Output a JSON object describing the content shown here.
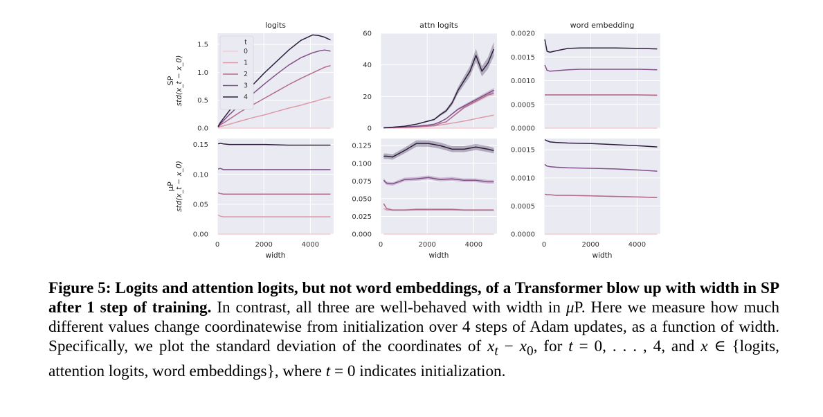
{
  "caption": {
    "label": "Figure 5:",
    "bold_text": "Logits and attention logits, but not word embeddings, of a Transformer blow up with width in SP after 1 step of training.",
    "part1": "In contrast, all three are well-behaved with width in ",
    "mu": "μ",
    "part2": "P. Here we measure how much different values change coordinatewise from initialization over 4 steps of Adam updates, as a function of width. Specifically, we plot the standard deviation of the coordinates of ",
    "math1": "x",
    "sub_t": "t",
    "minus": " − ",
    "sub_0": "0",
    "part3": ", for ",
    "t_var": "t",
    "range_text": " = 0, . . . , 4, and ",
    "x_var": "x",
    "set_text": " ∈ {logits, attention logits, word embeddings}, where ",
    "t_var2": "t",
    "part4": " = 0 indicates initialization."
  },
  "colors": {
    "background": "#eaeaf2",
    "grid": "#ffffff",
    "series": [
      "#f2cbcf",
      "#dc9aa8",
      "#b46a8f",
      "#804f88",
      "#2d1e3e"
    ]
  },
  "chart_data": [
    {
      "type": "line",
      "row": "SP",
      "title": "logits",
      "ylabel": "std(x_t − x_0)",
      "ylabel_row": "SP",
      "xlim": [
        0,
        5000
      ],
      "ylim": [
        0,
        1.7
      ],
      "xticks": [
        0,
        2000,
        4000
      ],
      "xticklabels": [],
      "yticks": [
        0,
        0.5,
        1.0,
        1.5
      ],
      "yticklabels": [
        "0.0",
        "0.5",
        "1.0",
        "1.5"
      ],
      "legend": {
        "title": "t",
        "entries": [
          "0",
          "1",
          "2",
          "3",
          "4"
        ],
        "position": "upper-left"
      },
      "x": [
        32,
        128,
        256,
        512,
        768,
        1024,
        1536,
        2048,
        2560,
        3072,
        3584,
        4096,
        4352,
        4608,
        4864
      ],
      "series": [
        {
          "name": "0",
          "values": [
            0,
            0,
            0,
            0,
            0,
            0,
            0,
            0,
            0,
            0,
            0,
            0,
            0,
            0,
            0
          ]
        },
        {
          "name": "1",
          "values": [
            0.01,
            0.03,
            0.04,
            0.07,
            0.1,
            0.13,
            0.19,
            0.24,
            0.3,
            0.36,
            0.41,
            0.47,
            0.5,
            0.53,
            0.56
          ]
        },
        {
          "name": "2",
          "values": [
            0.02,
            0.06,
            0.09,
            0.16,
            0.23,
            0.3,
            0.42,
            0.54,
            0.66,
            0.78,
            0.89,
            0.99,
            1.04,
            1.09,
            1.12
          ]
        },
        {
          "name": "3",
          "values": [
            0.02,
            0.08,
            0.13,
            0.24,
            0.34,
            0.44,
            0.62,
            0.8,
            0.97,
            1.13,
            1.26,
            1.35,
            1.38,
            1.4,
            1.38
          ]
        },
        {
          "name": "4",
          "values": [
            0.03,
            0.1,
            0.17,
            0.31,
            0.44,
            0.56,
            0.78,
            1.0,
            1.2,
            1.4,
            1.57,
            1.67,
            1.66,
            1.63,
            1.58
          ]
        }
      ]
    },
    {
      "type": "line",
      "row": "SP",
      "title": "attn logits",
      "xlim": [
        0,
        5000
      ],
      "ylim": [
        0,
        60
      ],
      "xticks": [
        0,
        2000,
        4000
      ],
      "xticklabels": [],
      "yticks": [
        0,
        20,
        40,
        60
      ],
      "yticklabels": [
        "0",
        "20",
        "40",
        "60"
      ],
      "x": [
        128,
        512,
        1024,
        1536,
        2048,
        2304,
        2560,
        2816,
        3072,
        3328,
        3584,
        3840,
        4096,
        4352,
        4608,
        4864
      ],
      "series": [
        {
          "name": "0",
          "values": [
            0,
            0,
            0,
            0,
            0,
            0,
            0,
            0,
            0,
            0,
            0,
            0,
            0,
            0,
            0,
            0
          ]
        },
        {
          "name": "1",
          "values": [
            0.1,
            0.2,
            0.4,
            0.7,
            1.2,
            1.5,
            2.0,
            2.5,
            3.2,
            3.8,
            4.5,
            5.2,
            6.0,
            6.8,
            7.5,
            8.2
          ]
        },
        {
          "name": "2",
          "values": [
            0.2,
            0.4,
            0.6,
            0.9,
            1.4,
            1.6,
            3.0,
            4.0,
            7.0,
            10.0,
            13.0,
            15.0,
            17.0,
            19.0,
            21.0,
            22.0
          ]
        },
        {
          "name": "3",
          "values": [
            0.2,
            0.5,
            0.8,
            1.2,
            2.0,
            2.5,
            4.0,
            6.0,
            9.0,
            12.0,
            14.0,
            16.0,
            18.0,
            20.0,
            22.0,
            24.0
          ]
        },
        {
          "name": "4",
          "values": [
            0.3,
            0.6,
            1.2,
            2.5,
            4.5,
            5.5,
            8.5,
            11.0,
            16.0,
            24.0,
            30.0,
            36.0,
            46.0,
            36.0,
            41.0,
            50.0
          ]
        }
      ]
    },
    {
      "type": "line",
      "row": "SP",
      "title": "word embedding",
      "xlim": [
        0,
        5000
      ],
      "ylim": [
        0,
        0.002
      ],
      "xticks": [
        0,
        2000,
        4000
      ],
      "xticklabels": [],
      "yticks": [
        0,
        0.0005,
        0.001,
        0.0015,
        0.002
      ],
      "yticklabels": [
        "0.0000",
        "0.0005",
        "0.0010",
        "0.0015",
        "0.0020"
      ],
      "x": [
        32,
        128,
        256,
        512,
        1024,
        1536,
        2048,
        3072,
        4096,
        4864
      ],
      "series": [
        {
          "name": "0",
          "values": [
            0,
            0,
            0,
            0,
            0,
            0,
            0,
            0,
            0,
            0
          ]
        },
        {
          "name": "1",
          "values": [
            0.0007,
            0.0007,
            0.0007,
            0.0007,
            0.0007,
            0.0007,
            0.0007,
            0.0007,
            0.0007,
            0.0007
          ]
        },
        {
          "name": "2",
          "values": [
            0.0007,
            0.0007,
            0.0007,
            0.0007,
            0.0007,
            0.0007,
            0.0007,
            0.0007,
            0.0007,
            0.00069
          ]
        },
        {
          "name": "3",
          "values": [
            0.00133,
            0.00122,
            0.0012,
            0.00121,
            0.00123,
            0.00124,
            0.00124,
            0.00124,
            0.00124,
            0.00123
          ]
        },
        {
          "name": "4",
          "values": [
            0.00187,
            0.00162,
            0.0016,
            0.00163,
            0.00168,
            0.00169,
            0.00169,
            0.00169,
            0.00168,
            0.00167
          ]
        }
      ]
    },
    {
      "type": "line",
      "row": "μP",
      "title": "",
      "ylabel": "std(x_t − x_0)",
      "ylabel_row": "μP",
      "xlabel": "width",
      "xlim": [
        0,
        5000
      ],
      "ylim": [
        0,
        0.16
      ],
      "xticks": [
        0,
        2000,
        4000
      ],
      "xticklabels": [
        "0",
        "2000",
        "4000"
      ],
      "yticks": [
        0,
        0.05,
        0.1,
        0.15
      ],
      "yticklabels": [
        "0.00",
        "0.05",
        "0.10",
        "0.15"
      ],
      "x": [
        32,
        128,
        256,
        512,
        1024,
        2048,
        3072,
        4096,
        4864
      ],
      "series": [
        {
          "name": "0",
          "values": [
            0,
            0,
            0,
            0,
            0,
            0,
            0,
            0,
            0
          ]
        },
        {
          "name": "1",
          "values": [
            0.032,
            0.03,
            0.029,
            0.029,
            0.029,
            0.029,
            0.029,
            0.029,
            0.029
          ]
        },
        {
          "name": "2",
          "values": [
            0.069,
            0.068,
            0.067,
            0.067,
            0.067,
            0.067,
            0.067,
            0.067,
            0.067
          ]
        },
        {
          "name": "3",
          "values": [
            0.109,
            0.11,
            0.108,
            0.108,
            0.108,
            0.108,
            0.108,
            0.108,
            0.108
          ]
        },
        {
          "name": "4",
          "values": [
            0.151,
            0.152,
            0.151,
            0.15,
            0.15,
            0.15,
            0.149,
            0.149,
            0.149
          ]
        }
      ]
    },
    {
      "type": "line",
      "row": "μP",
      "title": "",
      "xlabel": "width",
      "xlim": [
        0,
        5000
      ],
      "ylim": [
        0,
        0.135
      ],
      "xticks": [
        0,
        2000,
        4000
      ],
      "xticklabels": [
        "0",
        "2000",
        "4000"
      ],
      "yticks": [
        0,
        0.025,
        0.05,
        0.075,
        0.1,
        0.125
      ],
      "yticklabels": [
        "0.000",
        "0.025",
        "0.050",
        "0.075",
        "0.100",
        "0.125"
      ],
      "x": [
        128,
        256,
        512,
        1024,
        1536,
        2048,
        2560,
        3072,
        3584,
        4096,
        4608,
        4864
      ],
      "series": [
        {
          "name": "0",
          "values": [
            0,
            0,
            0,
            0,
            0,
            0,
            0,
            0,
            0,
            0,
            0,
            0
          ]
        },
        {
          "name": "1",
          "values": [
            0.036,
            0.034,
            0.034,
            0.034,
            0.034,
            0.034,
            0.034,
            0.034,
            0.034,
            0.034,
            0.034,
            0.034
          ]
        },
        {
          "name": "2",
          "values": [
            0.043,
            0.036,
            0.034,
            0.034,
            0.035,
            0.035,
            0.035,
            0.035,
            0.034,
            0.034,
            0.034,
            0.034
          ]
        },
        {
          "name": "3",
          "values": [
            0.076,
            0.072,
            0.071,
            0.077,
            0.078,
            0.08,
            0.077,
            0.078,
            0.076,
            0.076,
            0.074,
            0.074
          ]
        },
        {
          "name": "4",
          "values": [
            0.11,
            0.11,
            0.109,
            0.118,
            0.128,
            0.128,
            0.125,
            0.12,
            0.12,
            0.123,
            0.12,
            0.118
          ]
        }
      ]
    },
    {
      "type": "line",
      "row": "μP",
      "title": "",
      "xlabel": "width",
      "xlim": [
        0,
        5000
      ],
      "ylim": [
        0,
        0.0017
      ],
      "xticks": [
        0,
        2000,
        4000
      ],
      "xticklabels": [
        "0",
        "2000",
        "4000"
      ],
      "yticks": [
        0,
        0.0005,
        0.001,
        0.0015
      ],
      "yticklabels": [
        "0.0000",
        "0.0005",
        "0.0010",
        "0.0015"
      ],
      "x": [
        32,
        128,
        256,
        512,
        1024,
        2048,
        3072,
        4096,
        4864
      ],
      "series": [
        {
          "name": "0",
          "values": [
            0,
            0,
            0,
            0,
            0,
            0,
            0,
            0,
            0
          ]
        },
        {
          "name": "1",
          "values": [
            0.00071,
            0.0007,
            0.0007,
            0.00069,
            0.00069,
            0.00068,
            0.00067,
            0.00066,
            0.00065
          ]
        },
        {
          "name": "2",
          "values": [
            0.00071,
            0.0007,
            0.0007,
            0.00069,
            0.00069,
            0.00068,
            0.00067,
            0.00066,
            0.00065
          ]
        },
        {
          "name": "3",
          "values": [
            0.00124,
            0.00121,
            0.0012,
            0.00119,
            0.00118,
            0.00117,
            0.00116,
            0.00114,
            0.00112
          ]
        },
        {
          "name": "4",
          "values": [
            0.00168,
            0.00166,
            0.00164,
            0.00163,
            0.00162,
            0.00161,
            0.00159,
            0.00157,
            0.00155
          ]
        }
      ]
    }
  ]
}
